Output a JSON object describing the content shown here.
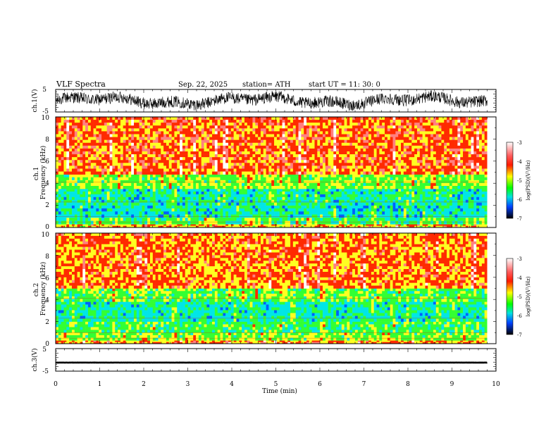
{
  "header": {
    "title": "VLF  Spectra",
    "date": "Sep. 22, 2025",
    "station": "station= ATH",
    "start_time": "start  UT  =    11: 30: 0"
  },
  "chart_data": [
    {
      "type": "line",
      "name": "ch1-waveform",
      "ylabel": "ch.1(V)",
      "ylim": [
        -5,
        5
      ],
      "y_tick_labels": [
        "5",
        "-5"
      ],
      "xlim": [
        0,
        10
      ],
      "description_values": {
        "mean": 0,
        "amplitude": 3.5
      }
    },
    {
      "type": "heatmap",
      "name": "ch1-spectrogram",
      "ylabel": "ch.1\nFrequency (kHz)",
      "ylim": [
        0,
        10
      ],
      "y_tick_labels": [
        "0",
        "2",
        "4",
        "6",
        "8",
        "10"
      ],
      "x": [
        0,
        9.8
      ],
      "bands_khz": [
        {
          "from": 0,
          "to": 0.3,
          "level": -4.1
        },
        {
          "from": 0.3,
          "to": 0.9,
          "level": -4.8
        },
        {
          "from": 0.9,
          "to": 2.0,
          "level": -5.2
        },
        {
          "from": 2.0,
          "to": 3.5,
          "level": -5.1
        },
        {
          "from": 3.5,
          "to": 4.8,
          "level": -4.6
        },
        {
          "from": 4.8,
          "to": 10,
          "level": -3.8
        }
      ],
      "colorbar": {
        "label": "log(PSD)(V²/Hz)",
        "range": [
          -7,
          -3
        ],
        "tick_labels": [
          "-3",
          "-4",
          "-5",
          "-6",
          "-7"
        ]
      }
    },
    {
      "type": "heatmap",
      "name": "ch2-spectrogram",
      "ylabel": "ch.2\nFrequency (kHz)",
      "ylim": [
        0,
        10
      ],
      "y_tick_labels": [
        "0",
        "2",
        "4",
        "6",
        "8",
        "10"
      ],
      "x": [
        0,
        9.8
      ],
      "bands_khz": [
        {
          "from": 0,
          "to": 0.3,
          "level": -4.0
        },
        {
          "from": 0.3,
          "to": 1.0,
          "level": -4.6
        },
        {
          "from": 1.0,
          "to": 2.0,
          "level": -4.8
        },
        {
          "from": 2.0,
          "to": 3.8,
          "level": -5.1
        },
        {
          "from": 3.8,
          "to": 5.0,
          "level": -4.7
        },
        {
          "from": 5.0,
          "to": 10,
          "level": -3.9
        }
      ],
      "colorbar": {
        "label": "log(PSD)(V²/Hz)",
        "range": [
          -7,
          -3
        ],
        "tick_labels": [
          "-3",
          "-4",
          "-5",
          "-6",
          "-7"
        ]
      }
    },
    {
      "type": "line",
      "name": "ch3-waveform",
      "ylabel": "ch.3(V)",
      "ylim": [
        -5,
        5
      ],
      "y_tick_labels": [
        "5",
        "-5"
      ],
      "xlim": [
        0,
        10
      ],
      "description_values": {
        "mean": -1.2,
        "amplitude": 0.2
      }
    }
  ],
  "x_axis": {
    "label": "Time  (min)",
    "range": [
      0,
      10
    ],
    "tick_labels": [
      "0",
      "1",
      "2",
      "3",
      "4",
      "5",
      "6",
      "7",
      "8",
      "9",
      "10"
    ]
  },
  "colors": {
    "red": "#ff2a00",
    "yellow": "#ffff20",
    "green": "#33ff33",
    "cyan": "#00e6e6",
    "blue": "#0060ff",
    "navy": "#0000c0",
    "black": "#000000"
  }
}
